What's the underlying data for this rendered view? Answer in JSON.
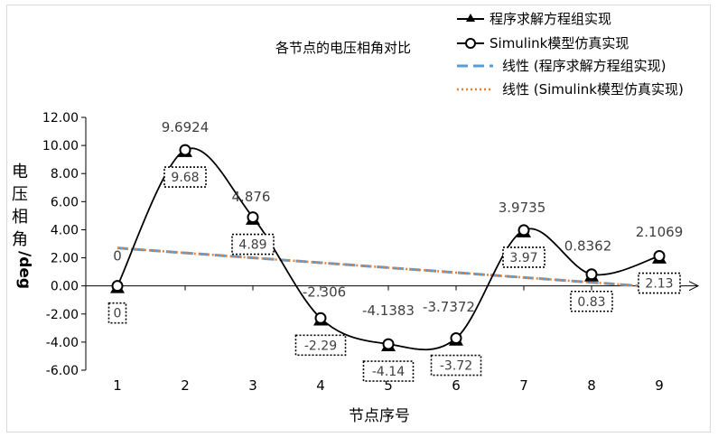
{
  "chart_data": {
    "type": "line",
    "title": "各节点的电压相角对比",
    "xlabel": "节点序号",
    "ylabel": "电压相角/deg",
    "categories": [
      "1",
      "2",
      "3",
      "4",
      "5",
      "6",
      "7",
      "8",
      "9"
    ],
    "ylim": [
      -6,
      12
    ],
    "yticks": [
      "12.00",
      "10.00",
      "8.00",
      "6.00",
      "4.00",
      "2.00",
      "0.00",
      "-2.00",
      "-4.00",
      "-6.00"
    ],
    "series": [
      {
        "name": "程序求解方程组实现",
        "values": [
          0,
          9.6924,
          4.876,
          -2.306,
          -4.1383,
          -3.7372,
          3.9735,
          0.8362,
          2.1069
        ],
        "labels": [
          "0",
          "9.6924",
          "4.876",
          "-2.306",
          "-4.1383",
          "-3.7372",
          "3.9735",
          "0.8362",
          "2.1069"
        ],
        "marker": "triangle",
        "color": "#000000"
      },
      {
        "name": "Simulink模型仿真实现",
        "values": [
          0,
          9.68,
          4.89,
          -2.29,
          -4.14,
          -3.72,
          3.97,
          0.83,
          2.13
        ],
        "labels": [
          "0",
          "9.68",
          "4.89",
          "-2.29",
          "-4.14",
          "-3.72",
          "3.97",
          "0.83",
          "2.13"
        ],
        "marker": "circle",
        "color": "#000000"
      }
    ],
    "trendlines": [
      {
        "name": "线性 (程序求解方程组实现)",
        "values": [
          2.7,
          2.35,
          2.0,
          1.65,
          1.3,
          0.95,
          0.6,
          0.25,
          -0.1
        ],
        "color": "#5b9bd5",
        "style": "dashed"
      },
      {
        "name": "线性 (Simulink模型仿真实现)",
        "values": [
          2.7,
          2.35,
          2.0,
          1.65,
          1.3,
          0.95,
          0.6,
          0.25,
          -0.1
        ],
        "color": "#ed7d31",
        "style": "dotted"
      }
    ],
    "legend": "top-right",
    "grid": false
  }
}
